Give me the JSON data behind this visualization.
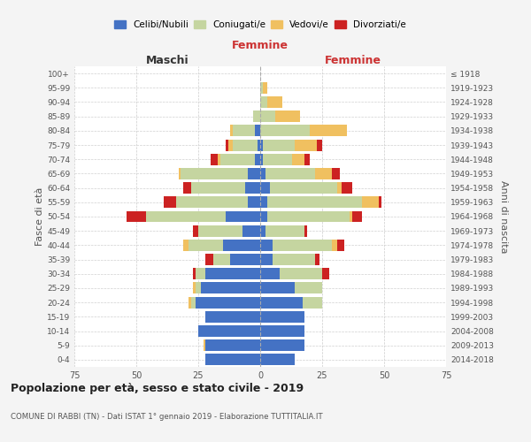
{
  "age_groups": [
    "0-4",
    "5-9",
    "10-14",
    "15-19",
    "20-24",
    "25-29",
    "30-34",
    "35-39",
    "40-44",
    "45-49",
    "50-54",
    "55-59",
    "60-64",
    "65-69",
    "70-74",
    "75-79",
    "80-84",
    "85-89",
    "90-94",
    "95-99",
    "100+"
  ],
  "birth_years": [
    "2014-2018",
    "2009-2013",
    "2004-2008",
    "1999-2003",
    "1994-1998",
    "1989-1993",
    "1984-1988",
    "1979-1983",
    "1974-1978",
    "1969-1973",
    "1964-1968",
    "1959-1963",
    "1954-1958",
    "1949-1953",
    "1944-1948",
    "1939-1943",
    "1934-1938",
    "1929-1933",
    "1924-1928",
    "1919-1923",
    "≤ 1918"
  ],
  "male": {
    "celibi": [
      22,
      22,
      25,
      22,
      26,
      24,
      22,
      12,
      15,
      7,
      14,
      5,
      6,
      5,
      2,
      1,
      2,
      0,
      0,
      0,
      0
    ],
    "coniugati": [
      0,
      0,
      0,
      0,
      2,
      2,
      4,
      7,
      14,
      18,
      32,
      29,
      22,
      27,
      14,
      10,
      9,
      3,
      0,
      0,
      0
    ],
    "vedovi": [
      0,
      1,
      0,
      0,
      1,
      1,
      0,
      0,
      2,
      0,
      0,
      0,
      0,
      1,
      1,
      2,
      1,
      0,
      0,
      0,
      0
    ],
    "divorziati": [
      0,
      0,
      0,
      0,
      0,
      0,
      1,
      3,
      0,
      2,
      8,
      5,
      3,
      0,
      3,
      1,
      0,
      0,
      0,
      0,
      0
    ]
  },
  "female": {
    "nubili": [
      14,
      18,
      18,
      18,
      17,
      14,
      8,
      5,
      5,
      2,
      3,
      3,
      4,
      2,
      1,
      1,
      0,
      0,
      0,
      0,
      0
    ],
    "coniugate": [
      0,
      0,
      0,
      0,
      8,
      11,
      17,
      17,
      24,
      16,
      33,
      38,
      27,
      20,
      12,
      13,
      20,
      6,
      3,
      1,
      0
    ],
    "vedove": [
      0,
      0,
      0,
      0,
      0,
      0,
      0,
      0,
      2,
      0,
      1,
      7,
      2,
      7,
      5,
      9,
      15,
      10,
      6,
      2,
      0
    ],
    "divorziate": [
      0,
      0,
      0,
      0,
      0,
      0,
      3,
      2,
      3,
      1,
      4,
      1,
      4,
      3,
      2,
      2,
      0,
      0,
      0,
      0,
      0
    ]
  },
  "colors": {
    "celibi_nubili": "#4472c4",
    "coniugati_e": "#c5d5a0",
    "vedovi_e": "#f0c060",
    "divorziati_e": "#cc2222"
  },
  "xlim": 75,
  "title": "Popolazione per età, sesso e stato civile - 2019",
  "subtitle": "COMUNE DI RABBI (TN) - Dati ISTAT 1° gennaio 2019 - Elaborazione TUTTITALIA.IT",
  "ylabel_left": "Fasce di età",
  "ylabel_right": "Anni di nascita",
  "xlabel_left": "Maschi",
  "xlabel_right": "Femmine",
  "legend_labels": [
    "Celibi/Nubili",
    "Coniugati/e",
    "Vedovi/e",
    "Divorziati/e"
  ],
  "background_color": "#f4f4f4",
  "plot_bg": "#ffffff"
}
